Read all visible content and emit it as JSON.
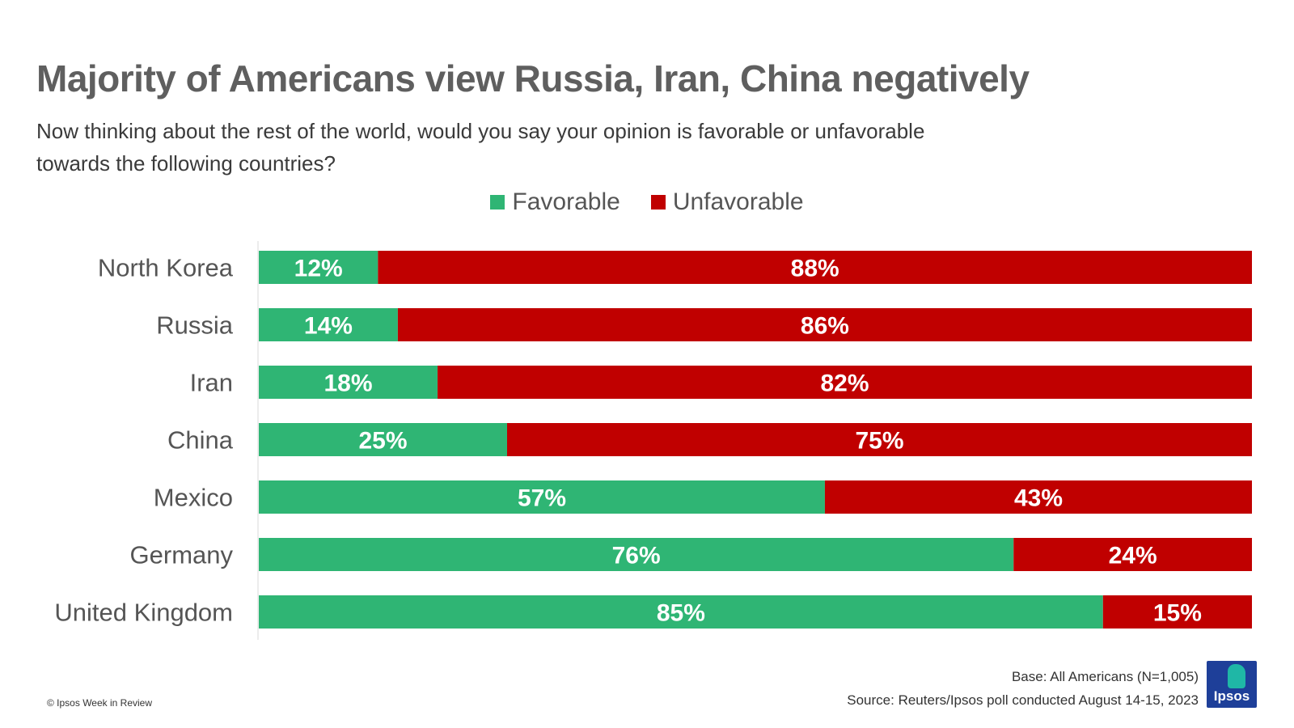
{
  "title": "Majority of Americans view Russia, Iran, China negatively",
  "subtitle": "Now thinking about the rest of the world, would you say your opinion is favorable or unfavorable towards the following countries?",
  "colors": {
    "favorable": "#2fb574",
    "unfavorable": "#c00000",
    "title": "#5f5f5f"
  },
  "chart_data": {
    "type": "bar",
    "orientation": "horizontal",
    "stacked": true,
    "categories": [
      "North Korea",
      "Russia",
      "Iran",
      "China",
      "Mexico",
      "Germany",
      "United Kingdom"
    ],
    "series": [
      {
        "name": "Favorable",
        "values": [
          12,
          14,
          18,
          25,
          57,
          76,
          85
        ],
        "color": "#2fb574"
      },
      {
        "name": "Unfavorable",
        "values": [
          88,
          86,
          82,
          75,
          43,
          24,
          15
        ],
        "color": "#c00000"
      }
    ],
    "value_suffix": "%",
    "xlim": [
      0,
      100
    ],
    "legend_position": "top-center",
    "grid": false
  },
  "footer": {
    "copyright": "© Ipsos Week in Review",
    "base": "Base: All Americans (N=1,005)",
    "source": "Source: Reuters/Ipsos poll conducted August 14-15, 2023",
    "logo_text": "Ipsos"
  }
}
